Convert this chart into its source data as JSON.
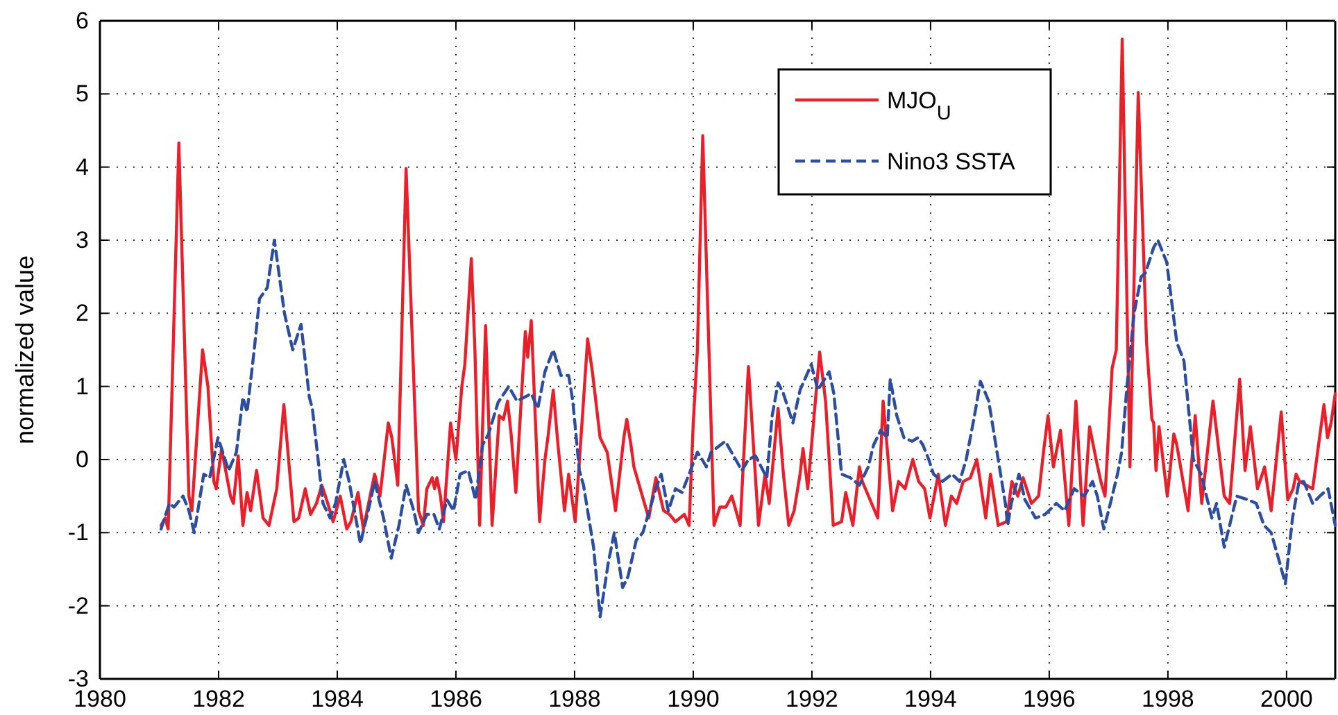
{
  "chart_data": {
    "type": "line",
    "ylabel": "normalized value",
    "xlim": [
      1980,
      2000.82
    ],
    "xticks": [
      1980,
      1982,
      1984,
      1986,
      1988,
      1990,
      1992,
      1994,
      1996,
      1998,
      2000
    ],
    "ylim": [
      -3,
      6
    ],
    "yticks": [
      -3,
      -2,
      -1,
      0,
      1,
      2,
      3,
      4,
      5,
      6
    ],
    "grid": true,
    "legend": "top right",
    "marker": "none",
    "series": [
      {
        "name": "MJO$_{U}$",
        "color": "#e8202a",
        "line_style": "solid",
        "x": [
          1981.03,
          1981.1,
          1981.15,
          1981.33,
          1981.5,
          1981.55,
          1981.73,
          1981.82,
          1981.92,
          1981.96,
          1982.05,
          1982.2,
          1982.25,
          1982.33,
          1982.41,
          1982.48,
          1982.54,
          1982.64,
          1982.75,
          1982.85,
          1982.98,
          1983.1,
          1983.27,
          1983.35,
          1983.46,
          1983.55,
          1983.65,
          1983.74,
          1983.84,
          1983.93,
          1984.05,
          1984.16,
          1984.23,
          1984.35,
          1984.44,
          1984.63,
          1984.72,
          1984.86,
          1984.92,
          1985.02,
          1985.16,
          1985.37,
          1985.45,
          1985.51,
          1985.6,
          1985.64,
          1985.68,
          1985.74,
          1985.79,
          1985.91,
          1986.0,
          1986.1,
          1986.15,
          1986.26,
          1986.32,
          1986.4,
          1986.5,
          1986.61,
          1986.73,
          1986.8,
          1986.87,
          1986.93,
          1987.01,
          1987.1,
          1987.17,
          1987.21,
          1987.27,
          1987.41,
          1987.5,
          1987.55,
          1987.64,
          1987.72,
          1987.83,
          1987.9,
          1988.01,
          1988.15,
          1988.22,
          1988.3,
          1988.43,
          1988.55,
          1988.69,
          1988.83,
          1988.88,
          1988.95,
          1989.0,
          1989.25,
          1989.37,
          1989.5,
          1989.6,
          1989.7,
          1989.85,
          1989.93,
          1990.0,
          1990.07,
          1990.16,
          1990.35,
          1990.45,
          1990.55,
          1990.65,
          1990.79,
          1990.93,
          1991.1,
          1991.21,
          1991.28,
          1991.43,
          1991.52,
          1991.61,
          1991.7,
          1991.8,
          1991.85,
          1991.93,
          1992.13,
          1992.23,
          1992.36,
          1992.5,
          1992.57,
          1992.69,
          1992.8,
          1992.85,
          1993.11,
          1993.2,
          1993.36,
          1993.46,
          1993.57,
          1993.7,
          1993.8,
          1993.9,
          1993.99,
          1994.13,
          1994.25,
          1994.35,
          1994.44,
          1994.55,
          1994.67,
          1994.78,
          1994.93,
          1995.01,
          1995.14,
          1995.28,
          1995.37,
          1995.47,
          1995.56,
          1995.7,
          1995.82,
          1995.91,
          1995.98,
          1996.07,
          1996.19,
          1996.33,
          1996.45,
          1996.57,
          1996.68,
          1996.79,
          1996.87,
          1996.94,
          1997.06,
          1997.13,
          1997.23,
          1997.36,
          1997.5,
          1997.64,
          1997.73,
          1997.76,
          1997.8,
          1997.85,
          1997.99,
          1998.1,
          1998.15,
          1998.34,
          1998.46,
          1998.57,
          1998.76,
          1998.95,
          1999.04,
          1999.21,
          1999.3,
          1999.39,
          1999.51,
          1999.63,
          1999.74,
          1999.91,
          2000.02,
          2000.11,
          2000.16,
          2000.22,
          2000.44,
          2000.63,
          2000.69,
          2000.75,
          2000.82
        ],
        "values": [
          -0.9,
          -0.8,
          -0.95,
          4.33,
          -0.5,
          -0.7,
          1.5,
          1.0,
          -0.3,
          -0.4,
          0.15,
          -0.5,
          -0.6,
          0.05,
          -0.9,
          -0.45,
          -0.7,
          -0.15,
          -0.8,
          -0.9,
          -0.4,
          0.75,
          -0.85,
          -0.8,
          -0.4,
          -0.75,
          -0.6,
          -0.35,
          -0.6,
          -0.85,
          -0.5,
          -0.95,
          -0.85,
          -0.45,
          -0.95,
          -0.2,
          -0.5,
          0.5,
          0.3,
          -0.35,
          3.98,
          -0.7,
          -0.9,
          -0.4,
          -0.25,
          -0.4,
          -0.25,
          -0.5,
          -0.85,
          0.5,
          0.0,
          1.0,
          1.3,
          2.75,
          1.5,
          -0.9,
          1.83,
          -0.9,
          0.6,
          0.55,
          0.8,
          0.35,
          -0.45,
          0.8,
          1.75,
          1.4,
          1.9,
          -0.85,
          0.0,
          0.3,
          0.95,
          0.2,
          -0.7,
          -0.2,
          -0.85,
          0.8,
          1.65,
          1.2,
          0.3,
          0.1,
          -0.7,
          0.3,
          0.55,
          0.2,
          -0.1,
          -0.8,
          -0.25,
          -0.7,
          -0.75,
          -0.85,
          -0.75,
          -0.9,
          0.5,
          1.5,
          4.43,
          -0.9,
          -0.65,
          -0.65,
          -0.5,
          -0.9,
          1.27,
          -0.9,
          -0.2,
          -0.6,
          0.7,
          -0.2,
          -0.9,
          -0.7,
          -0.2,
          0.15,
          -0.4,
          1.47,
          0.8,
          -0.9,
          -0.85,
          -0.45,
          -0.9,
          -0.1,
          -0.3,
          -0.8,
          0.8,
          -0.7,
          -0.3,
          -0.4,
          0.0,
          -0.3,
          -0.4,
          -0.8,
          -0.2,
          -0.9,
          -0.5,
          -0.6,
          -0.3,
          -0.25,
          0.0,
          -0.8,
          -0.2,
          -0.9,
          -0.85,
          -0.3,
          -0.5,
          -0.25,
          -0.6,
          -0.5,
          0.15,
          0.6,
          -0.1,
          0.4,
          -0.9,
          0.8,
          -0.9,
          0.45,
          0.0,
          -0.3,
          -0.5,
          1.25,
          1.5,
          5.75,
          -0.1,
          5.02,
          1.6,
          0.55,
          0.5,
          -0.15,
          0.45,
          -0.5,
          0.35,
          0.2,
          -0.7,
          0.6,
          -0.6,
          0.8,
          -0.5,
          -0.6,
          1.1,
          -0.15,
          0.45,
          -0.4,
          -0.1,
          -0.7,
          0.65,
          -0.55,
          -0.4,
          -0.2,
          -0.3,
          -0.4,
          0.75,
          0.3,
          0.5,
          0.9
        ]
      },
      {
        "name": "Nino3 SSTA",
        "color": "#2b4ea2",
        "line_style": "dashed",
        "x": [
          1981.03,
          1981.17,
          1981.25,
          1981.4,
          1981.5,
          1981.59,
          1981.75,
          1981.85,
          1981.99,
          1982.17,
          1982.3,
          1982.41,
          1982.48,
          1982.6,
          1982.69,
          1982.82,
          1982.94,
          1983.11,
          1983.25,
          1983.39,
          1983.53,
          1983.58,
          1983.76,
          1983.88,
          1983.97,
          1984.11,
          1984.2,
          1984.39,
          1984.55,
          1984.63,
          1984.78,
          1984.91,
          1985.04,
          1985.16,
          1985.29,
          1985.37,
          1985.51,
          1985.63,
          1985.72,
          1985.85,
          1985.96,
          1986.07,
          1986.21,
          1986.33,
          1986.45,
          1986.55,
          1986.71,
          1986.89,
          1987.03,
          1987.27,
          1987.38,
          1987.5,
          1987.64,
          1987.77,
          1987.9,
          1987.97,
          1988.08,
          1988.15,
          1988.32,
          1988.43,
          1988.57,
          1988.67,
          1988.81,
          1988.9,
          1989.04,
          1989.15,
          1989.37,
          1989.46,
          1989.58,
          1989.7,
          1989.81,
          1989.93,
          1990.07,
          1990.15,
          1990.22,
          1990.3,
          1990.54,
          1990.82,
          1990.93,
          1991.05,
          1991.24,
          1991.33,
          1991.43,
          1991.52,
          1991.68,
          1991.8,
          1991.99,
          1992.1,
          1992.29,
          1992.37,
          1992.5,
          1992.65,
          1992.8,
          1992.95,
          1993.04,
          1993.16,
          1993.27,
          1993.32,
          1993.43,
          1993.55,
          1993.69,
          1993.79,
          1993.87,
          1993.97,
          1994.05,
          1994.2,
          1994.36,
          1994.49,
          1994.6,
          1994.74,
          1994.84,
          1994.98,
          1995.14,
          1995.26,
          1995.3,
          1995.36,
          1995.49,
          1995.59,
          1995.77,
          1995.93,
          1996.12,
          1996.26,
          1996.42,
          1996.59,
          1996.73,
          1996.81,
          1996.92,
          1997.03,
          1997.15,
          1997.22,
          1997.31,
          1997.43,
          1997.55,
          1997.62,
          1997.76,
          1997.83,
          1997.98,
          1998.15,
          1998.27,
          1998.43,
          1998.56,
          1998.74,
          1998.82,
          1998.95,
          1999.07,
          1999.16,
          1999.35,
          1999.49,
          1999.62,
          1999.74,
          1999.88,
          1999.98,
          2000.1,
          2000.21,
          2000.29,
          2000.44,
          2000.56,
          2000.7,
          2000.82
        ],
        "values": [
          -0.95,
          -0.6,
          -0.65,
          -0.5,
          -0.7,
          -1.0,
          -0.2,
          -0.25,
          0.3,
          -0.15,
          0.1,
          0.85,
          0.65,
          1.5,
          2.2,
          2.35,
          3.0,
          2.0,
          1.5,
          1.85,
          0.85,
          0.7,
          -0.6,
          -0.8,
          -0.6,
          0.0,
          -0.3,
          -1.15,
          -0.6,
          -0.3,
          -0.8,
          -1.35,
          -0.9,
          -0.35,
          -0.7,
          -1.0,
          -0.75,
          -0.75,
          -0.95,
          -0.55,
          -0.7,
          -0.2,
          -0.15,
          -0.55,
          0.2,
          0.35,
          0.78,
          1.0,
          0.8,
          0.9,
          0.7,
          1.2,
          1.5,
          1.15,
          1.15,
          0.8,
          -0.15,
          -0.35,
          -1.2,
          -2.15,
          -1.4,
          -1.0,
          -1.75,
          -1.6,
          -1.1,
          -1.0,
          -0.4,
          -0.2,
          -0.7,
          -0.4,
          -0.45,
          -0.2,
          0.1,
          0.0,
          -0.1,
          0.1,
          0.25,
          -0.15,
          0.0,
          0.05,
          -0.25,
          0.6,
          1.05,
          0.9,
          0.5,
          0.95,
          1.3,
          0.95,
          1.2,
          0.9,
          -0.2,
          -0.25,
          -0.35,
          -0.1,
          0.2,
          0.4,
          0.3,
          1.1,
          0.6,
          0.3,
          0.25,
          0.3,
          0.2,
          0.0,
          -0.2,
          -0.3,
          -0.2,
          -0.3,
          0.0,
          0.6,
          1.07,
          0.8,
          0.0,
          -0.6,
          -0.9,
          -0.6,
          -0.2,
          -0.55,
          -0.8,
          -0.75,
          -0.6,
          -0.7,
          -0.4,
          -0.5,
          -0.3,
          -0.5,
          -0.95,
          -0.6,
          -0.2,
          0.1,
          1.0,
          2.0,
          2.5,
          2.55,
          2.9,
          3.0,
          2.7,
          1.6,
          1.35,
          0.0,
          -0.2,
          -0.8,
          -0.6,
          -1.2,
          -0.8,
          -0.5,
          -0.55,
          -0.6,
          -0.9,
          -1.0,
          -1.4,
          -1.7,
          -0.8,
          -0.3,
          -0.3,
          -0.6,
          -0.5,
          -0.4,
          -0.9
        ]
      }
    ]
  }
}
